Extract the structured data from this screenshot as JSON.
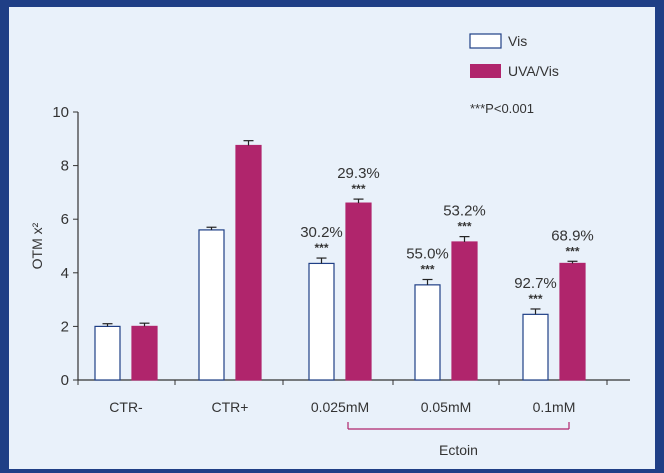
{
  "chart_data": {
    "type": "bar",
    "categories": [
      "CTR-",
      "CTR+",
      "0.025mM",
      "0.05mM",
      "0.1mM"
    ],
    "series": [
      {
        "name": "Vis",
        "values": [
          2.0,
          5.6,
          4.35,
          3.55,
          2.45
        ],
        "errors": [
          0.1,
          0.1,
          0.2,
          0.2,
          0.2
        ]
      },
      {
        "name": "UVA/Vis",
        "values": [
          2.0,
          8.75,
          6.6,
          5.15,
          4.35
        ],
        "errors": [
          0.12,
          0.18,
          0.15,
          0.2,
          0.08
        ]
      }
    ],
    "ylabel": "OTM x²",
    "ylim": [
      0,
      10
    ],
    "yticks": [
      0,
      2,
      4,
      6,
      8,
      10
    ],
    "annotations": {
      "percent": [
        [
          "",
          "",
          "30.2%",
          "55.0%",
          "92.7%"
        ],
        [
          "",
          "",
          "29.3%",
          "53.2%",
          "68.9%"
        ]
      ],
      "significance": [
        [
          "",
          "",
          "***",
          "***",
          "***"
        ],
        [
          "",
          "",
          "***",
          "***",
          "***"
        ]
      ],
      "p_value_note": "***P<0.001"
    },
    "group_label": "Ectoin",
    "legend_position": "top-right",
    "colors": {
      "Vis": "#ffffff",
      "UVA/Vis": "#b0256c",
      "bar_stroke": "#1f3f86",
      "axis": "#333333",
      "bracket": "#b0256c"
    }
  }
}
